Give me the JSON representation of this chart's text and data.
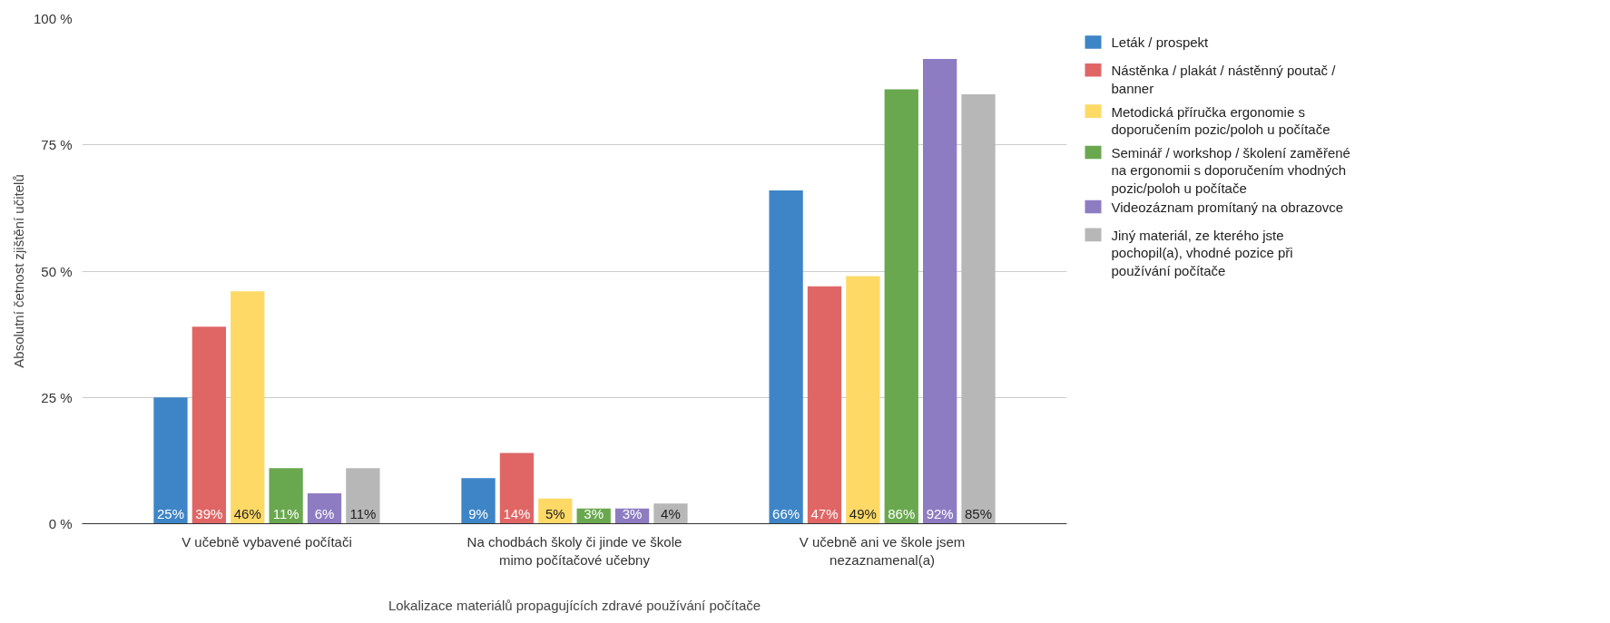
{
  "chart_data": {
    "type": "bar",
    "xlabel": "Lokalizace materiálů propagujících zdravé používání počítače",
    "ylabel": "Absolutní četnost zjištění učitelů",
    "categories": [
      "V učebně vybavené počítači",
      "Na chodbách školy či jinde ve škole mimo počítačové učebny",
      "V učebně ani ve škole jsem nezaznamenal(a)"
    ],
    "ylim": [
      0,
      100
    ],
    "yticks": [
      {
        "value": 0,
        "label": "0 %"
      },
      {
        "value": 25,
        "label": "25 %"
      },
      {
        "value": 50,
        "label": "50 %"
      },
      {
        "value": 75,
        "label": "75 %"
      },
      {
        "value": 100,
        "label": "100 %"
      }
    ],
    "grid": "y",
    "legend": "top right",
    "series": [
      {
        "name": "Leták / prospekt",
        "color": "#3d85c6",
        "values": [
          25,
          9,
          66
        ],
        "value_labels": [
          "25%",
          "9%",
          "66%"
        ]
      },
      {
        "name": "Nástěnka / plakát / nástěnný poutač / banner",
        "color": "#e06666",
        "values": [
          39,
          14,
          47
        ],
        "value_labels": [
          "39%",
          "14%",
          "47%"
        ]
      },
      {
        "name": "Metodická příručka ergonomie s doporučením pozic/poloh u počítače",
        "color": "#ffd966",
        "values": [
          46,
          5,
          49
        ],
        "value_labels": [
          "46%",
          "5%",
          "49%"
        ]
      },
      {
        "name": "Seminář / workshop / školení zaměřené na ergonomii s doporučením vhodných pozic/poloh u počítače",
        "color": "#6aa84f",
        "values": [
          11,
          3,
          86
        ],
        "value_labels": [
          "11%",
          "3%",
          "86%"
        ]
      },
      {
        "name": "Videozáznam promítaný na obrazovce",
        "color": "#8e7cc3",
        "values": [
          6,
          3,
          92
        ],
        "value_labels": [
          "6%",
          "3%",
          "92%"
        ]
      },
      {
        "name": "Jiný materiál, ze kterého jste pochopil(a), vhodné pozice při používání počítače",
        "color": "#b7b7b7",
        "values": [
          11,
          4,
          85
        ],
        "value_labels": [
          "11%",
          "4%",
          "85%"
        ]
      }
    ]
  }
}
